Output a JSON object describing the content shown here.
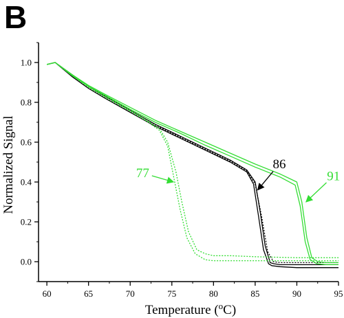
{
  "panel_label": "B",
  "chart_data": {
    "type": "line",
    "title": "",
    "xlabel": "Temperature (",
    "xlabel_sup": "o",
    "xlabel_tail": "C)",
    "ylabel": "Normalized Signal",
    "xlim": [
      59,
      95
    ],
    "ylim": [
      -0.1,
      1.1
    ],
    "x_ticks": [
      60,
      65,
      70,
      75,
      80,
      85,
      90,
      95
    ],
    "y_ticks": [
      0.0,
      0.2,
      0.4,
      0.6,
      0.8,
      1.0
    ],
    "y_tick_labels": [
      "0.0",
      "0.2",
      "0.4",
      "0.6",
      "0.8",
      "1.0"
    ],
    "grid": false,
    "colors": {
      "black": "#000000",
      "green": "#33dd33"
    },
    "series": [
      {
        "color": "black",
        "dash": "solid",
        "x": [
          60,
          61,
          63,
          65,
          67,
          70,
          73,
          76,
          79,
          82,
          84,
          85,
          85.6,
          86.2,
          86.8,
          87.2,
          88,
          90,
          95
        ],
        "y": [
          0.99,
          1.0,
          0.94,
          0.88,
          0.83,
          0.76,
          0.69,
          0.63,
          0.57,
          0.51,
          0.46,
          0.4,
          0.25,
          0.08,
          -0.005,
          -0.01,
          -0.015,
          -0.015,
          -0.015
        ]
      },
      {
        "color": "black",
        "dash": "solid",
        "x": [
          60,
          61,
          63,
          65,
          67,
          70,
          73,
          76,
          79,
          82,
          84,
          84.8,
          85.4,
          86.0,
          86.6,
          87.0,
          88,
          90,
          95
        ],
        "y": [
          0.99,
          1.0,
          0.93,
          0.87,
          0.82,
          0.75,
          0.68,
          0.62,
          0.56,
          0.5,
          0.45,
          0.39,
          0.23,
          0.06,
          -0.01,
          -0.02,
          -0.025,
          -0.03,
          -0.03
        ]
      },
      {
        "color": "black",
        "dash": "dotted",
        "x": [
          60,
          61,
          63,
          65,
          67,
          70,
          73,
          76,
          79,
          82,
          84,
          85,
          85.8,
          86.5,
          87.2,
          88,
          90,
          95
        ],
        "y": [
          0.99,
          1.0,
          0.935,
          0.875,
          0.825,
          0.755,
          0.685,
          0.625,
          0.565,
          0.505,
          0.455,
          0.39,
          0.22,
          0.05,
          0.0,
          -0.005,
          -0.005,
          -0.005
        ]
      },
      {
        "color": "green",
        "dash": "solid",
        "x": [
          60,
          61,
          63,
          65,
          67,
          70,
          73,
          76,
          79,
          82,
          85,
          88,
          90,
          90.6,
          91.2,
          91.8,
          92.5,
          93.5,
          95
        ],
        "y": [
          0.99,
          1.0,
          0.94,
          0.885,
          0.84,
          0.775,
          0.71,
          0.655,
          0.6,
          0.545,
          0.49,
          0.44,
          0.4,
          0.3,
          0.12,
          0.02,
          0.0,
          -0.005,
          -0.005
        ]
      },
      {
        "color": "green",
        "dash": "solid",
        "x": [
          60,
          61,
          63,
          65,
          67,
          70,
          73,
          76,
          79,
          82,
          85,
          88,
          89.8,
          90.4,
          91.0,
          91.6,
          92.4,
          93.5,
          95
        ],
        "y": [
          0.99,
          1.0,
          0.935,
          0.88,
          0.835,
          0.765,
          0.7,
          0.645,
          0.585,
          0.53,
          0.475,
          0.425,
          0.385,
          0.28,
          0.1,
          0.01,
          -0.01,
          -0.015,
          -0.015
        ]
      },
      {
        "color": "green",
        "dash": "dotted",
        "x": [
          60,
          61,
          63,
          65,
          67,
          70,
          72,
          73.5,
          74.5,
          75.5,
          76.2,
          77,
          78,
          79,
          80,
          82,
          85,
          90,
          95
        ],
        "y": [
          0.99,
          1.0,
          0.94,
          0.88,
          0.83,
          0.76,
          0.71,
          0.67,
          0.6,
          0.45,
          0.3,
          0.15,
          0.06,
          0.04,
          0.03,
          0.03,
          0.025,
          0.02,
          0.02
        ]
      },
      {
        "color": "green",
        "dash": "dotted",
        "x": [
          60,
          61,
          63,
          65,
          67,
          70,
          72,
          73.5,
          74.5,
          75.2,
          76.0,
          76.8,
          77.8,
          79,
          80,
          82,
          85,
          90,
          95
        ],
        "y": [
          0.99,
          1.0,
          0.935,
          0.875,
          0.825,
          0.755,
          0.705,
          0.66,
          0.58,
          0.43,
          0.26,
          0.12,
          0.04,
          0.01,
          0.005,
          0.005,
          0.005,
          0.005,
          0.005
        ]
      }
    ],
    "annotations": [
      {
        "text": "77",
        "color": "green",
        "x": 71.5,
        "y": 0.445,
        "arrow_to": [
          75.2,
          0.4
        ]
      },
      {
        "text": "86",
        "color": "black",
        "x": 87.9,
        "y": 0.49,
        "arrow_to": [
          85.3,
          0.36
        ]
      },
      {
        "text": "91",
        "color": "green",
        "x": 94.4,
        "y": 0.43,
        "arrow_to": [
          91.1,
          0.3
        ]
      }
    ]
  }
}
